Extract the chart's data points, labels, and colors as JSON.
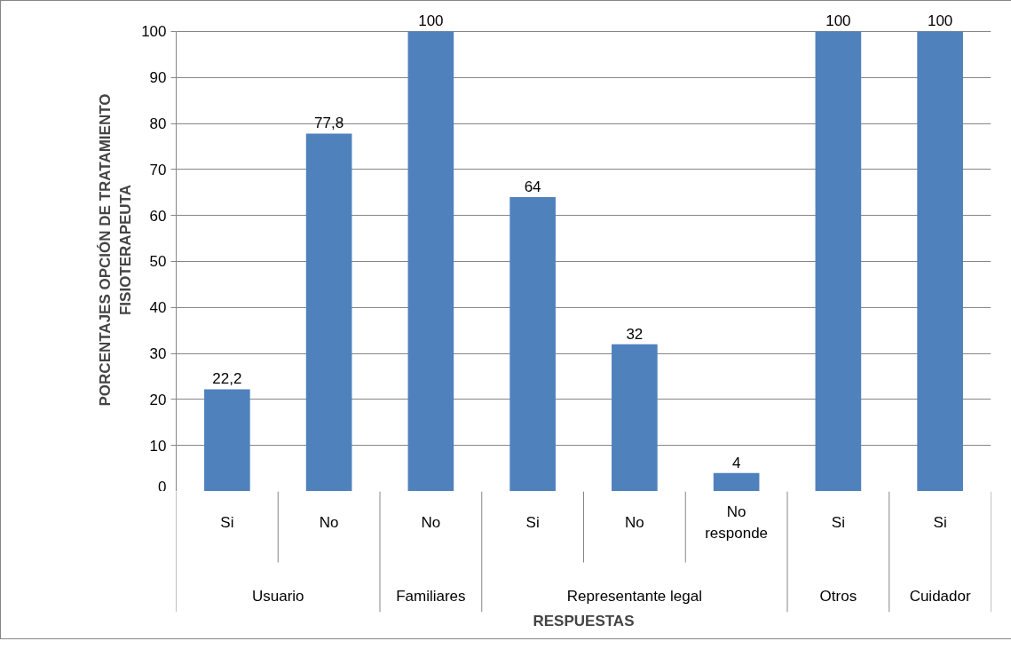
{
  "chart_data": {
    "type": "bar",
    "xlabel": "RESPUESTAS",
    "ylabel": "PORCENTAJES OPCIÓN DE TRATAMIENTO\nFISIOTERAPEUTA",
    "categories": [
      "Si",
      "No",
      "No",
      "Si",
      "No",
      "No\nresponde",
      "Si",
      "Si"
    ],
    "annotations": [
      "Usuario",
      "Familiares",
      "Representante legal",
      "Otros",
      "Cuidador"
    ],
    "values": [
      22.2,
      77.8,
      100,
      64,
      32,
      4,
      100,
      100
    ],
    "value_labels": [
      "22,2",
      "77,8",
      "100",
      "64",
      "32",
      "4",
      "100",
      "100"
    ],
    "color": "#4f81bd",
    "ylim": [
      0,
      100
    ],
    "yticks": [
      0,
      10,
      20,
      30,
      40,
      50,
      60,
      70,
      80,
      90,
      100
    ],
    "grid": "y"
  }
}
